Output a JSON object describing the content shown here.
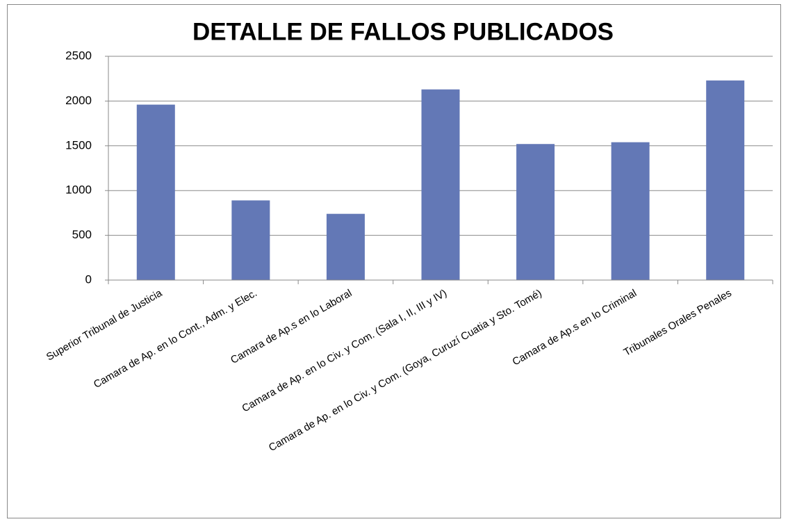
{
  "chart_data": {
    "type": "bar",
    "title": "DETALLE DE FALLOS PUBLICADOS",
    "categories": [
      "Superior Tribunal de Justicia",
      "Camara de Ap. en lo Cont., Adm. y Elec.",
      "Camara de Ap.s en lo Laboral",
      "Camara de Ap. en lo Civ. y Com. (Sala I, II, III y IV)",
      "Camara de Ap. en lo Civ. y Com. (Goya, Curuzí Cuatia y Sto. Tomé)",
      "Camara de Ap.s en lo Criminal",
      "Tribunales Orales Penales"
    ],
    "values": [
      1960,
      890,
      740,
      2130,
      1520,
      1540,
      2230
    ],
    "color": "#6378b6",
    "ylim": [
      0,
      2500
    ],
    "yticks": [
      0,
      500,
      1000,
      1500,
      2000,
      2500
    ],
    "grid": true
  }
}
